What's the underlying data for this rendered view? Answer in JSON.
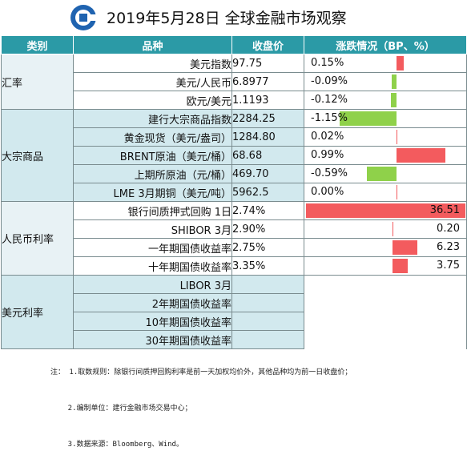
{
  "title": "2019年5月28日 全球金融市场观察",
  "columns": [
    "类别",
    "品种",
    "收盘价",
    "涨跌情况（BP、%）"
  ],
  "groups": [
    {
      "name": "汇率",
      "rows": [
        {
          "item": "美元指数",
          "close": "97.75",
          "change_text": "0.15%",
          "change": 0.15
        },
        {
          "item": "美元/人民币",
          "close": "6.8977",
          "change_text": "-0.09%",
          "change": -0.09
        },
        {
          "item": "欧元/美元",
          "close": "1.1193",
          "change_text": "-0.12%",
          "change": -0.12
        }
      ]
    },
    {
      "name": "大宗商品",
      "rows": [
        {
          "item": "建行大宗商品指数",
          "close": "2284.25",
          "change_text": "-1.15%",
          "change": -1.15
        },
        {
          "item": "黄金现货（美元/盎司）",
          "close": "1284.80",
          "change_text": "0.02%",
          "change": 0.02
        },
        {
          "item": "BRENT原油（美元/桶）",
          "close": "68.68",
          "change_text": "0.99%",
          "change": 0.99
        },
        {
          "item": "上期所原油（元/桶）",
          "close": "469.70",
          "change_text": "-0.59%",
          "change": -0.59
        },
        {
          "item": "LME 3月期铜（美元/吨）",
          "close": "5962.5",
          "change_text": "0.00%",
          "change": 0.0
        }
      ]
    },
    {
      "name": "人民币利率",
      "rows": [
        {
          "item": "银行间质押式回购 1日",
          "close": "2.74%",
          "change_text": "36.51",
          "change": 36.51
        },
        {
          "item": "SHIBOR 3月",
          "close": "2.90%",
          "change_text": "0.20",
          "change": 0.2
        },
        {
          "item": "一年期国债收益率",
          "close": "2.75%",
          "change_text": "6.23",
          "change": 6.23
        },
        {
          "item": "十年期国债收益率",
          "close": "3.35%",
          "change_text": "3.75",
          "change": 3.75
        }
      ]
    },
    {
      "name": "美元利率",
      "rows": [
        {
          "item": "LIBOR 3月",
          "close": "",
          "change_text": "",
          "change": null
        },
        {
          "item": "2年期国债收益率",
          "close": "",
          "change_text": "",
          "change": null
        },
        {
          "item": "10年期国债收益率",
          "close": "",
          "change_text": "",
          "change": null
        },
        {
          "item": "30年期国债收益率",
          "close": "",
          "change_text": "",
          "change": null
        }
      ]
    }
  ],
  "notes": [
    "注： 1.取数规则：除银行间质押回购利率是前一天加权均价外，其他品种均为前一日收盘价；",
    "    2.编制单位：建行金融市场交易中心；",
    "    3.数据来源：Bloomberg、Wind。"
  ],
  "colors": {
    "header": "#2b9aa6",
    "positive": "#f35b5e",
    "negative": "#8fd14a",
    "light_row": "#d2e9ee"
  }
}
